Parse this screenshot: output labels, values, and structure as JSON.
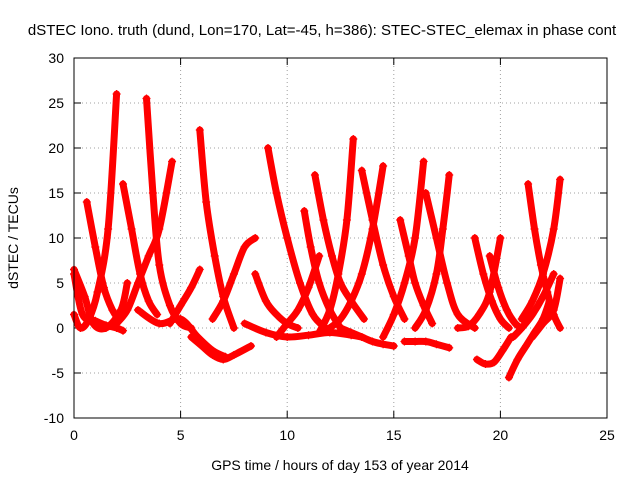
{
  "chart_data": {
    "type": "scatter",
    "title": "dSTEC Iono. truth (dund, Lon=170, Lat=-45, h=386): STEC-STEC_elemax in phase cont",
    "xlabel": "GPS time / hours of day 153 of year 2014",
    "ylabel": "dSTEC  / TECUs",
    "xlim": [
      0,
      25
    ],
    "ylim": [
      -10,
      30
    ],
    "xticks": [
      0,
      5,
      10,
      15,
      20,
      25
    ],
    "yticks": [
      -10,
      -5,
      0,
      5,
      10,
      15,
      20,
      25,
      30
    ],
    "grid": true,
    "legend": "none",
    "marker": "plus",
    "color": "#ff0000",
    "series": [
      {
        "x": [
          0.0,
          0.3,
          0.7,
          1.1,
          1.6,
          2.0
        ],
        "y": [
          1.5,
          0.0,
          1.0,
          4.0,
          11.0,
          26.0
        ]
      },
      {
        "x": [
          0.0,
          0.5,
          0.9,
          1.5,
          2.2,
          2.5
        ],
        "y": [
          6.5,
          3.5,
          0.5,
          0.0,
          2.0,
          5.0
        ]
      },
      {
        "x": [
          0.6,
          1.0,
          1.4,
          1.8,
          2.1
        ],
        "y": [
          14.0,
          9.0,
          4.5,
          2.0,
          1.0
        ]
      },
      {
        "x": [
          0.0,
          0.4,
          1.0,
          1.5,
          2.0,
          2.3
        ],
        "y": [
          6.0,
          1.5,
          0.8,
          0.3,
          0.0,
          -0.3
        ]
      },
      {
        "x": [
          2.3,
          2.7,
          3.1,
          3.5,
          3.9
        ],
        "y": [
          16.0,
          11.0,
          6.0,
          3.0,
          1.5
        ]
      },
      {
        "x": [
          3.4,
          3.7,
          4.0,
          4.5,
          5.0,
          5.5
        ],
        "y": [
          25.5,
          15.0,
          7.0,
          2.5,
          0.5,
          0.0
        ]
      },
      {
        "x": [
          2.0,
          2.5,
          3.0,
          3.5,
          4.0,
          4.6
        ],
        "y": [
          0.5,
          2.0,
          5.0,
          8.0,
          11.0,
          18.5
        ]
      },
      {
        "x": [
          3.0,
          4.0,
          5.0,
          5.8,
          6.5,
          7.1
        ],
        "y": [
          2.0,
          0.5,
          1.0,
          -1.0,
          -2.5,
          -3.2
        ]
      },
      {
        "x": [
          4.5,
          5.0,
          5.5,
          5.9
        ],
        "y": [
          0.5,
          2.5,
          4.5,
          6.5
        ]
      },
      {
        "x": [
          5.9,
          6.2,
          6.6,
          7.0,
          7.5
        ],
        "y": [
          22.0,
          14.0,
          8.0,
          3.5,
          0.0
        ]
      },
      {
        "x": [
          5.5,
          6.0,
          6.5,
          7.0,
          7.5,
          8.3
        ],
        "y": [
          -1.0,
          -2.0,
          -3.0,
          -3.5,
          -3.0,
          -2.0
        ]
      },
      {
        "x": [
          6.5,
          7.0,
          7.5,
          8.0,
          8.5
        ],
        "y": [
          1.0,
          3.0,
          6.0,
          9.0,
          10.0
        ]
      },
      {
        "x": [
          8.5,
          9.0,
          9.5,
          10.0,
          10.5
        ],
        "y": [
          6.0,
          3.0,
          1.5,
          0.5,
          0.0
        ]
      },
      {
        "x": [
          9.1,
          9.5,
          10.0,
          10.6,
          11.2,
          11.8
        ],
        "y": [
          20.0,
          15.0,
          10.0,
          5.0,
          1.5,
          0.0
        ]
      },
      {
        "x": [
          8.0,
          9.0,
          10.0,
          11.0,
          12.0,
          13.0,
          13.5
        ],
        "y": [
          0.5,
          -0.5,
          -1.0,
          -0.8,
          -0.5,
          -0.8,
          -1.0
        ]
      },
      {
        "x": [
          9.5,
          10.0,
          10.5,
          11.0,
          11.5
        ],
        "y": [
          -1.0,
          0.5,
          2.0,
          4.5,
          8.0
        ]
      },
      {
        "x": [
          10.8,
          11.1,
          11.5,
          12.0,
          12.5
        ],
        "y": [
          13.0,
          9.0,
          5.0,
          2.0,
          0.0
        ]
      },
      {
        "x": [
          11.3,
          11.7,
          12.1,
          12.5,
          13.0,
          13.6
        ],
        "y": [
          17.0,
          12.0,
          8.0,
          5.0,
          3.0,
          1.0
        ]
      },
      {
        "x": [
          11.5,
          12.0,
          12.4,
          12.8,
          13.1
        ],
        "y": [
          -0.5,
          2.0,
          6.0,
          12.0,
          21.0
        ]
      },
      {
        "x": [
          12.0,
          12.5,
          13.0,
          13.5,
          14.0,
          14.5
        ],
        "y": [
          0.0,
          1.0,
          3.0,
          6.0,
          11.0,
          18.0
        ]
      },
      {
        "x": [
          13.5,
          14.0,
          14.5,
          15.0,
          15.5
        ],
        "y": [
          17.5,
          12.0,
          7.0,
          3.5,
          1.0
        ]
      },
      {
        "x": [
          12.5,
          13.0,
          13.5,
          14.0,
          14.5,
          15.0
        ],
        "y": [
          0.0,
          -0.5,
          -1.0,
          -1.5,
          -1.8,
          -2.0
        ]
      },
      {
        "x": [
          15.3,
          15.7,
          16.0,
          16.4,
          16.8
        ],
        "y": [
          12.0,
          8.0,
          5.0,
          2.5,
          0.5
        ]
      },
      {
        "x": [
          14.5,
          15.0,
          15.5,
          16.0,
          16.4
        ],
        "y": [
          -1.0,
          1.5,
          5.0,
          10.0,
          18.5
        ]
      },
      {
        "x": [
          16.5,
          17.0,
          17.5,
          18.0,
          18.8
        ],
        "y": [
          15.0,
          10.0,
          5.0,
          1.5,
          0.0
        ]
      },
      {
        "x": [
          16.0,
          16.5,
          17.0,
          17.3,
          17.6
        ],
        "y": [
          0.0,
          2.0,
          6.0,
          11.0,
          17.0
        ]
      },
      {
        "x": [
          15.5,
          16.0,
          16.5,
          17.0,
          17.6
        ],
        "y": [
          -1.5,
          -1.5,
          -1.5,
          -1.8,
          -2.2
        ]
      },
      {
        "x": [
          18.0,
          18.5,
          19.0,
          19.5,
          20.0
        ],
        "y": [
          0.0,
          0.2,
          1.5,
          4.0,
          10.0
        ]
      },
      {
        "x": [
          18.8,
          19.2,
          19.6,
          20.0,
          20.4
        ],
        "y": [
          10.0,
          6.0,
          3.0,
          1.0,
          0.0
        ]
      },
      {
        "x": [
          18.9,
          19.3,
          19.7,
          20.1,
          20.5
        ],
        "y": [
          -3.5,
          -4.0,
          -3.8,
          -2.5,
          -1.0
        ]
      },
      {
        "x": [
          19.5,
          19.9,
          20.3,
          20.7,
          21.0
        ],
        "y": [
          8.0,
          4.5,
          2.0,
          0.5,
          0.0
        ]
      },
      {
        "x": [
          20.4,
          20.8,
          21.2,
          21.6,
          22.0,
          22.3
        ],
        "y": [
          -5.5,
          -3.5,
          -2.0,
          -0.5,
          1.0,
          3.0
        ]
      },
      {
        "x": [
          20.6,
          21.0,
          21.5,
          22.0,
          22.5
        ],
        "y": [
          -1.0,
          0.0,
          1.5,
          3.5,
          6.0
        ]
      },
      {
        "x": [
          21.3,
          21.6,
          21.9,
          22.2,
          22.5,
          22.8
        ],
        "y": [
          16.0,
          11.0,
          7.0,
          4.0,
          1.5,
          0.0
        ]
      },
      {
        "x": [
          21.0,
          21.5,
          22.0,
          22.5,
          22.8
        ],
        "y": [
          1.0,
          3.0,
          6.0,
          11.0,
          16.5
        ]
      },
      {
        "x": [
          21.5,
          22.0,
          22.5,
          22.8
        ],
        "y": [
          -1.0,
          0.5,
          2.0,
          5.5
        ]
      }
    ]
  }
}
